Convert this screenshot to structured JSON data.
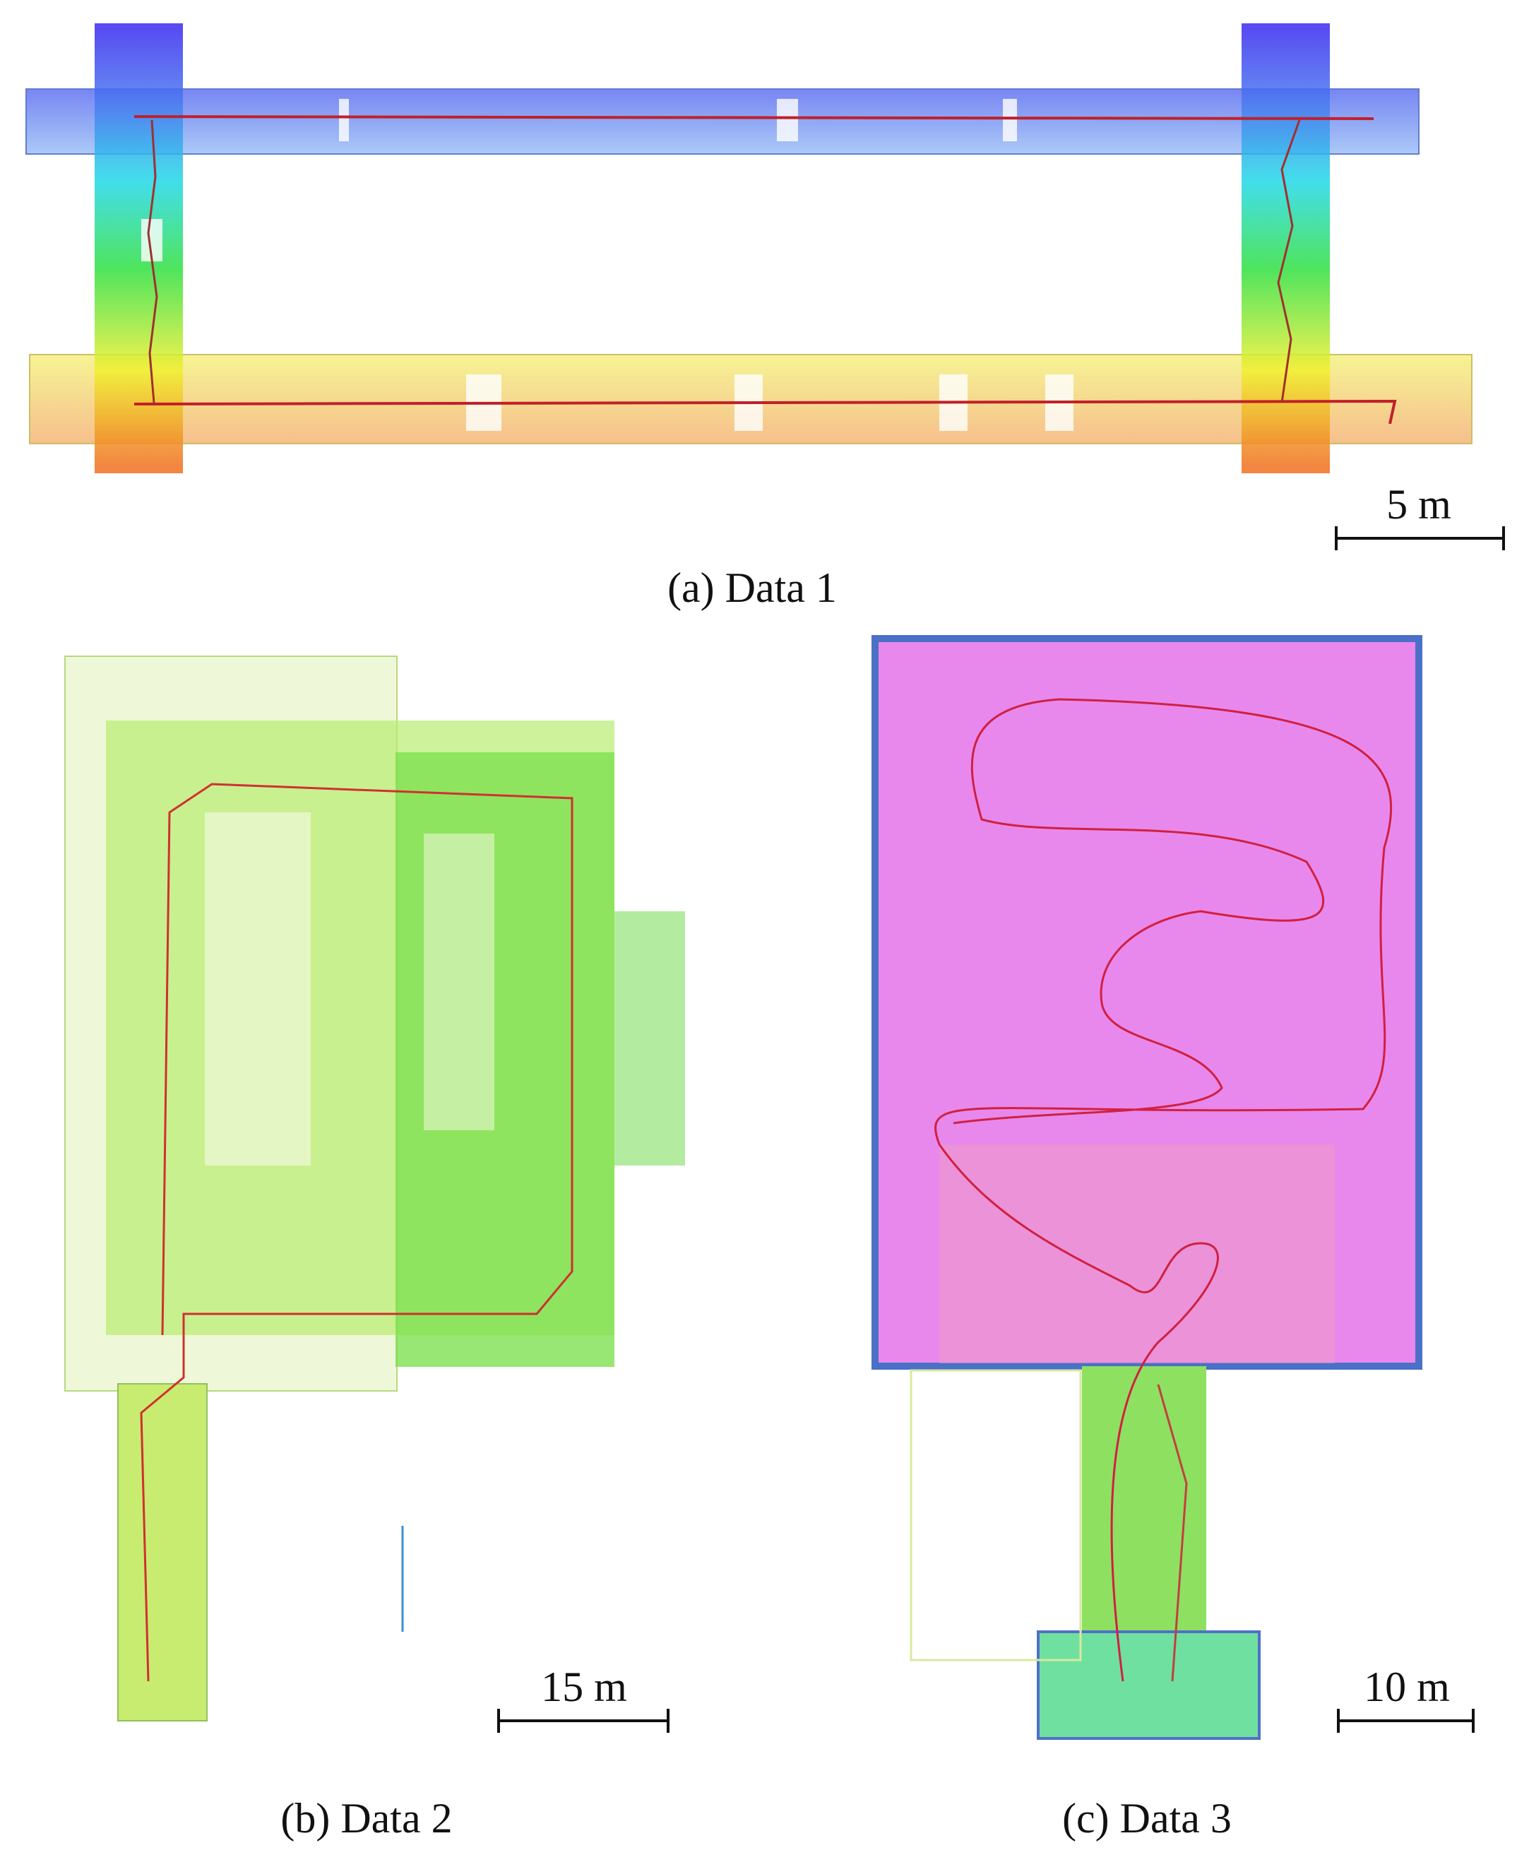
{
  "panels": [
    {
      "caption": "(a) Data 1",
      "scale_label": "5 m"
    },
    {
      "caption": "(b) Data 2",
      "scale_label": "15 m"
    },
    {
      "caption": "(c) Data 3",
      "scale_label": "10 m"
    }
  ]
}
